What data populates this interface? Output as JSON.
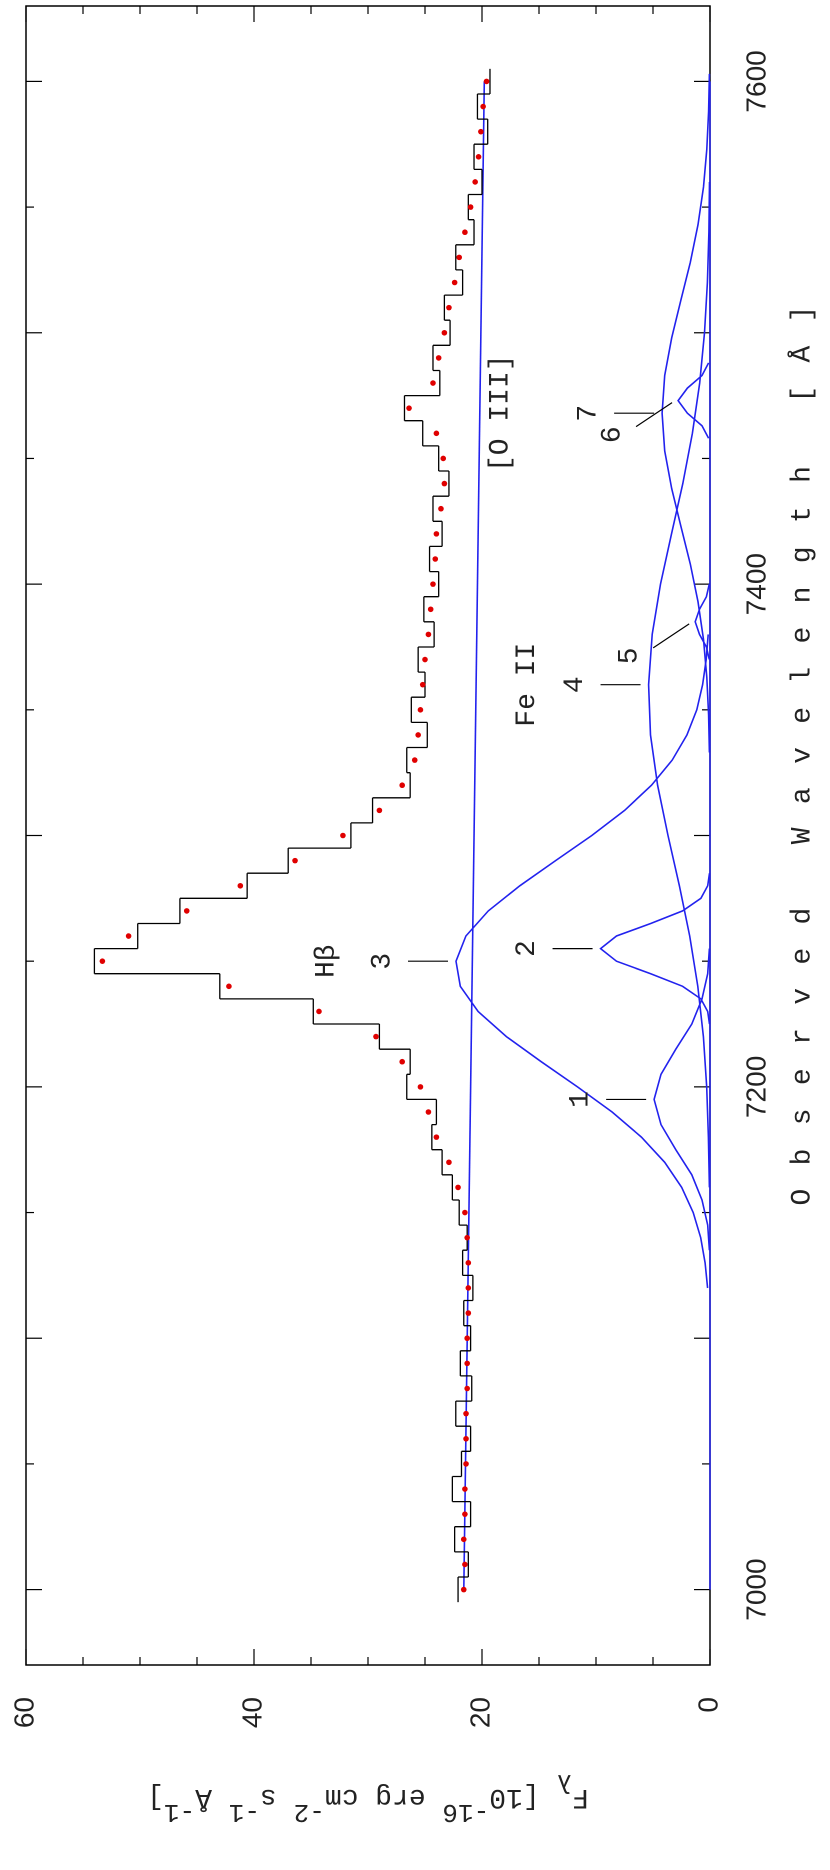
{
  "chart_data": {
    "type": "line",
    "xlabel": "Observed Wavelength [Å]",
    "ylabel": [
      "F",
      "λ",
      " [10",
      "-16",
      " erg cm",
      "-2",
      " s",
      "-1",
      " Å",
      "-1",
      "]"
    ],
    "xlim": [
      6970,
      7630
    ],
    "ylim": [
      0,
      60
    ],
    "xticks": [
      7000,
      7100,
      7200,
      7300,
      7400,
      7500,
      7600
    ],
    "xticks_labeled": [
      7000,
      7200,
      7400,
      7600
    ],
    "xminor": [
      7050,
      7150,
      7250,
      7350,
      7450,
      7550
    ],
    "yticks": [
      0,
      20,
      40,
      60
    ],
    "yminor": [
      5,
      10,
      15,
      25,
      30,
      35,
      45,
      50,
      55
    ],
    "spectrum": {
      "color": "#000000",
      "x": [
        7000,
        7010,
        7020,
        7030,
        7040,
        7050,
        7060,
        7070,
        7080,
        7090,
        7100,
        7110,
        7120,
        7130,
        7140,
        7150,
        7160,
        7170,
        7180,
        7190,
        7200,
        7210,
        7220,
        7230,
        7240,
        7250,
        7260,
        7270,
        7280,
        7290,
        7300,
        7310,
        7320,
        7330,
        7340,
        7350,
        7360,
        7370,
        7380,
        7390,
        7400,
        7410,
        7420,
        7430,
        7440,
        7450,
        7460,
        7470,
        7480,
        7490,
        7500,
        7510,
        7520,
        7530,
        7540,
        7550,
        7560,
        7570,
        7580,
        7590,
        7600
      ],
      "values": [
        22.1,
        21.2,
        22.4,
        21.0,
        22.6,
        21.8,
        21.0,
        22.3,
        20.9,
        21.9,
        21.0,
        21.6,
        20.8,
        21.7,
        21.3,
        22.0,
        22.6,
        23.5,
        24.4,
        24.0,
        26.6,
        26.3,
        29.0,
        34.8,
        43.0,
        54.0,
        50.2,
        46.5,
        40.6,
        37.0,
        31.5,
        29.6,
        26.3,
        26.6,
        24.8,
        26.2,
        25.0,
        25.6,
        24.2,
        25.1,
        23.8,
        24.6,
        23.5,
        24.3,
        22.9,
        23.8,
        25.2,
        26.8,
        23.7,
        24.3,
        22.8,
        23.3,
        21.7,
        22.3,
        20.7,
        21.2,
        20.0,
        20.7,
        19.5,
        20.4,
        19.3
      ]
    },
    "fit": {
      "color": "#e00000",
      "x": [
        7000,
        7010,
        7020,
        7030,
        7040,
        7050,
        7060,
        7070,
        7080,
        7090,
        7100,
        7110,
        7120,
        7130,
        7140,
        7150,
        7160,
        7170,
        7180,
        7190,
        7200,
        7210,
        7220,
        7230,
        7240,
        7250,
        7260,
        7270,
        7280,
        7290,
        7300,
        7310,
        7320,
        7330,
        7340,
        7350,
        7360,
        7370,
        7380,
        7390,
        7400,
        7410,
        7420,
        7430,
        7440,
        7450,
        7460,
        7470,
        7480,
        7490,
        7500,
        7510,
        7520,
        7530,
        7540,
        7550,
        7560,
        7570,
        7580,
        7590,
        7600
      ],
      "values": [
        21.6,
        21.5,
        21.6,
        21.5,
        21.5,
        21.4,
        21.4,
        21.4,
        21.3,
        21.3,
        21.3,
        21.2,
        21.2,
        21.2,
        21.3,
        21.5,
        22.1,
        22.9,
        24.0,
        24.7,
        25.4,
        27.0,
        29.3,
        34.3,
        42.2,
        53.3,
        51.0,
        45.9,
        41.2,
        36.4,
        32.2,
        29.0,
        27.0,
        25.9,
        25.6,
        25.4,
        25.2,
        25.0,
        24.7,
        24.5,
        24.3,
        24.1,
        24.0,
        23.6,
        23.3,
        23.4,
        24.0,
        26.4,
        24.3,
        23.8,
        23.3,
        22.9,
        22.4,
        22.0,
        21.5,
        21.0,
        20.6,
        20.3,
        20.1,
        19.9,
        19.6
      ]
    },
    "continuum": {
      "color": "#2222ee",
      "x": [
        7000,
        7600
      ],
      "values": [
        21.6,
        19.8
      ]
    },
    "series": [
      {
        "name": "1",
        "color": "#2222ee",
        "x": [
          7135,
          7145,
          7155,
          7165,
          7175,
          7185,
          7195,
          7205,
          7215,
          7225,
          7235,
          7245,
          7255
        ],
        "values": [
          0.05,
          0.2,
          0.7,
          1.6,
          3.0,
          4.3,
          4.9,
          4.3,
          3.0,
          1.6,
          0.7,
          0.2,
          0.05
        ]
      },
      {
        "name": "2",
        "color": "#2222ee",
        "x": [
          7225,
          7230,
          7235,
          7240,
          7245,
          7250,
          7255,
          7260,
          7265,
          7270,
          7275,
          7280,
          7285
        ],
        "values": [
          0.04,
          0.2,
          0.8,
          2.4,
          5.2,
          8.2,
          9.6,
          8.2,
          5.2,
          2.4,
          0.8,
          0.2,
          0.04
        ]
      },
      {
        "name": "3",
        "color": "#2222ee",
        "x": [
          7120,
          7130,
          7140,
          7150,
          7160,
          7170,
          7180,
          7190,
          7200,
          7210,
          7220,
          7230,
          7240,
          7250,
          7260,
          7270,
          7280,
          7290,
          7300,
          7310,
          7320,
          7330,
          7340,
          7350,
          7360,
          7370,
          7380
        ],
        "values": [
          0.21,
          0.43,
          0.82,
          1.47,
          2.48,
          3.97,
          6.02,
          8.59,
          11.62,
          14.81,
          17.86,
          20.34,
          21.9,
          22.28,
          21.41,
          19.45,
          16.68,
          13.54,
          10.37,
          7.49,
          5.13,
          3.32,
          2.03,
          1.16,
          0.65,
          0.33,
          0.16
        ]
      },
      {
        "name": "4",
        "color": "#2222ee",
        "x": [
          7160,
          7180,
          7200,
          7220,
          7240,
          7260,
          7280,
          7300,
          7320,
          7340,
          7360,
          7380,
          7400,
          7420,
          7440,
          7460,
          7480,
          7500,
          7520,
          7540,
          7560
        ],
        "values": [
          0.05,
          0.14,
          0.29,
          0.58,
          1.07,
          1.78,
          2.68,
          3.68,
          4.6,
          5.22,
          5.39,
          5.07,
          4.34,
          3.38,
          2.39,
          1.54,
          0.9,
          0.48,
          0.23,
          0.1,
          0.04
        ]
      },
      {
        "name": "5",
        "color": "#2222ee",
        "x": [
          7370,
          7375,
          7380,
          7385,
          7390,
          7395,
          7400
        ],
        "values": [
          0.06,
          0.32,
          0.92,
          1.3,
          0.92,
          0.32,
          0.06
        ]
      },
      {
        "name": "6",
        "color": "#2222ee",
        "x": [
          7458,
          7463,
          7468,
          7473,
          7478,
          7483,
          7488
        ],
        "values": [
          0.12,
          0.7,
          1.98,
          2.8,
          1.98,
          0.7,
          0.12
        ]
      },
      {
        "name": "7",
        "color": "#2222ee",
        "x": [
          7333,
          7348,
          7363,
          7378,
          7393,
          7408,
          7423,
          7438,
          7453,
          7468,
          7483,
          7498,
          7513,
          7528,
          7543,
          7558,
          7573,
          7588,
          7603
        ],
        "values": [
          0.05,
          0.12,
          0.28,
          0.57,
          1.05,
          1.73,
          2.55,
          3.36,
          3.97,
          4.2,
          3.97,
          3.36,
          2.55,
          1.73,
          1.05,
          0.57,
          0.28,
          0.12,
          0.05
        ]
      }
    ],
    "annotations": [
      "Hβ",
      "Fe II",
      "[O III]"
    ]
  }
}
